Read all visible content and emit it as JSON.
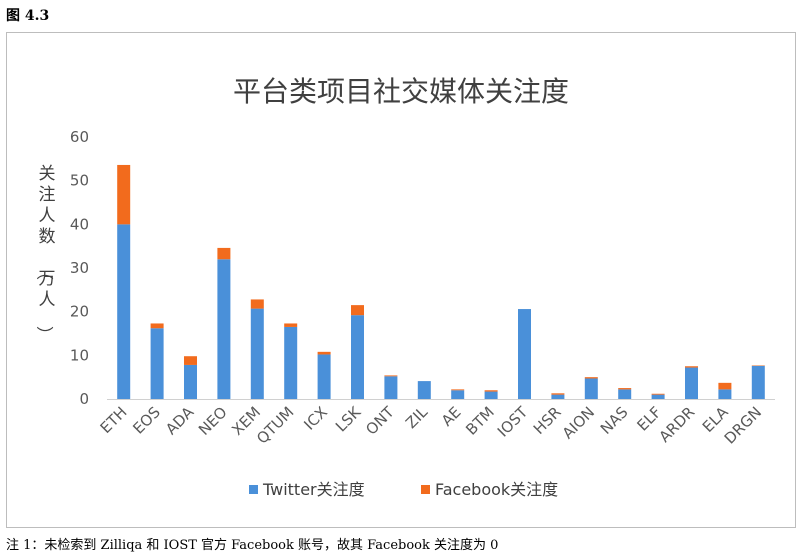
{
  "figure_label": "图 4.3",
  "footnote": "注 1：未检索到 Zilliqa 和 IOST 官方 Facebook 账号，故其 Facebook 关注度为 0",
  "chart_data": {
    "type": "bar",
    "stacked": true,
    "title": "平台类项目社交媒体关注度",
    "ylabel": "关注人数（万人）",
    "xlabel": "",
    "ylim": [
      0,
      60
    ],
    "yticks": [
      0,
      10,
      20,
      30,
      40,
      50,
      60
    ],
    "grid": false,
    "legend_position": "bottom",
    "categories": [
      "ETH",
      "EOS",
      "ADA",
      "NEO",
      "XEM",
      "QTUM",
      "ICX",
      "LSK",
      "ONT",
      "ZIL",
      "AE",
      "BTM",
      "IOST",
      "HSR",
      "AION",
      "NAS",
      "ELF",
      "ARDR",
      "ELA",
      "DRGN"
    ],
    "series": [
      {
        "name": "Twitter关注度",
        "color": "#4a90d9",
        "values": [
          40.0,
          16.2,
          7.8,
          32.0,
          20.7,
          16.5,
          10.2,
          19.2,
          5.2,
          4.1,
          2.0,
          1.7,
          20.6,
          1.0,
          4.7,
          2.2,
          1.0,
          7.2,
          2.2,
          7.6
        ]
      },
      {
        "name": "Facebook关注度",
        "color": "#f26b1d",
        "values": [
          13.6,
          1.1,
          2.0,
          2.6,
          2.1,
          0.8,
          0.6,
          2.3,
          0.2,
          0.0,
          0.2,
          0.3,
          0.0,
          0.3,
          0.3,
          0.3,
          0.2,
          0.3,
          1.5,
          0.1
        ]
      }
    ]
  }
}
